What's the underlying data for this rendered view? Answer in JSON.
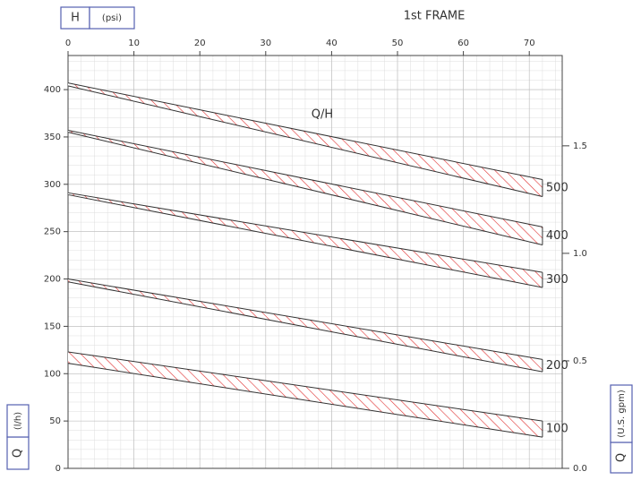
{
  "chart_data": {
    "type": "band",
    "title": "1st FRAME",
    "annotation": "Q/H",
    "x_axis_symbol": "H",
    "x_axis_unit": "(psi)",
    "y_axis_symbol": "Q",
    "y_axis_unit": "(l/h)",
    "y2_axis_symbol": "Q",
    "y2_axis_unit": "(U.S. gpm)",
    "x": [
      0,
      72
    ],
    "xlim": [
      0,
      75
    ],
    "xticks": [
      0,
      10,
      20,
      30,
      40,
      50,
      60,
      70
    ],
    "ylim": [
      0,
      436
    ],
    "yticks": [
      0,
      50,
      100,
      150,
      200,
      250,
      300,
      350,
      400
    ],
    "y2lim": [
      0,
      1.92
    ],
    "y2ticks": [
      {
        "value": 0,
        "label": "0.0"
      },
      0.5,
      {
        "value": 1,
        "label": "1.0"
      },
      1.5
    ],
    "grid": true,
    "series": [
      {
        "name": "500",
        "color": "#e03030",
        "values": [
          407,
          305
        ],
        "lower_values": [
          404,
          287
        ]
      },
      {
        "name": "400",
        "color": "#e03030",
        "values": [
          357,
          255
        ],
        "lower_values": [
          355,
          236
        ]
      },
      {
        "name": "300",
        "color": "#e03030",
        "values": [
          291,
          207
        ],
        "lower_values": [
          289,
          191
        ]
      },
      {
        "name": "200",
        "color": "#e03030",
        "values": [
          200,
          115
        ],
        "lower_values": [
          197,
          102
        ]
      },
      {
        "name": "100",
        "color": "#e03030",
        "values": [
          123,
          50
        ],
        "lower_values": [
          111,
          33
        ]
      }
    ]
  }
}
